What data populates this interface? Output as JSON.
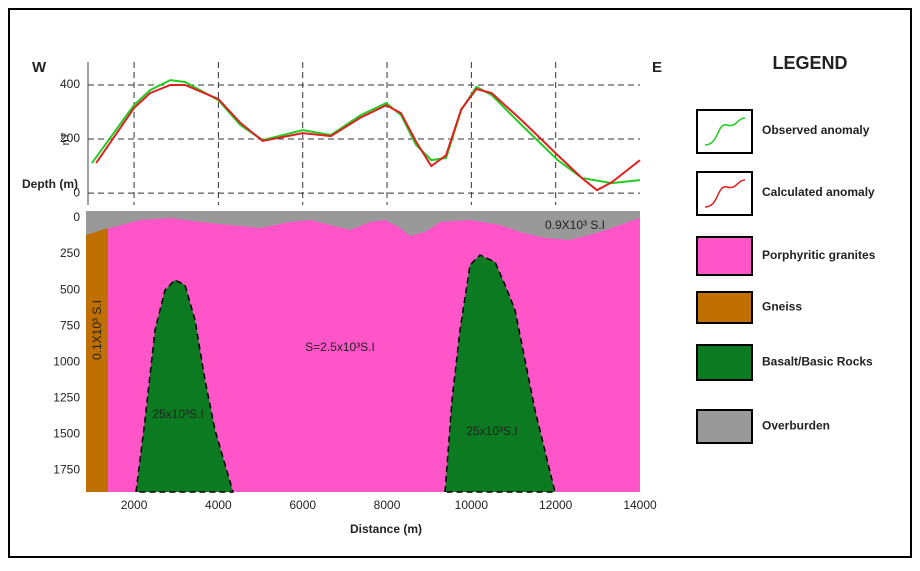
{
  "chart_data": [
    {
      "type": "line",
      "y_label": "nT",
      "left_label": "W",
      "right_label": "E",
      "xlim": [
        860,
        14000
      ],
      "ylim": [
        -44,
        485
      ],
      "yticks": [
        0,
        200,
        400
      ],
      "grid": true,
      "series": [
        {
          "name": "Observed anomaly",
          "color": "#22cc22",
          "x": [
            1000,
            2000,
            2380,
            2860,
            3210,
            4000,
            4520,
            5050,
            6000,
            6670,
            7380,
            7980,
            8330,
            8690,
            9050,
            9400,
            9760,
            10120,
            10480,
            11190,
            12050,
            12620,
            13330,
            14000
          ],
          "values": [
            111,
            326,
            381,
            418,
            411,
            344,
            252,
            196,
            233,
            215,
            289,
            333,
            289,
            178,
            122,
            130,
            307,
            393,
            363,
            252,
            122,
            56,
            37,
            48
          ]
        },
        {
          "name": "Calculated anomaly",
          "color": "#e02020",
          "x": [
            1100,
            2000,
            2380,
            2860,
            3210,
            4000,
            4520,
            5050,
            6000,
            6670,
            7380,
            7980,
            8330,
            8690,
            9050,
            9400,
            9760,
            10120,
            10480,
            11190,
            12050,
            12620,
            12980,
            13330,
            14000
          ],
          "values": [
            111,
            315,
            370,
            400,
            400,
            348,
            260,
            193,
            222,
            211,
            280,
            325,
            296,
            190,
            100,
            140,
            310,
            385,
            370,
            270,
            140,
            56,
            11,
            40,
            122
          ]
        }
      ]
    },
    {
      "type": "section",
      "x_label": "Distance (m)",
      "y_label": "Depth (m)",
      "xlim": [
        860,
        14000
      ],
      "ylim": [
        1900,
        0
      ],
      "xticks": [
        2000,
        4000,
        6000,
        8000,
        10000,
        12000,
        14000
      ],
      "yticks": [
        0,
        250,
        500,
        750,
        1000,
        1250,
        1500,
        1750
      ],
      "annotations": [
        "0.9X10³ S.I",
        "0.1X10³ S.I",
        "S=2.5x10³S.I",
        "25x10³S.I",
        "25x10³S.I"
      ]
    }
  ],
  "legend": {
    "title": "LEGEND",
    "units": [
      {
        "label": "Porphyritic granites",
        "color": "#ff55c8"
      },
      {
        "label": "Gneiss",
        "color": "#c07000"
      },
      {
        "label": "Basalt/Basic Rocks",
        "color": "#0b7a20"
      },
      {
        "label": "Overburden",
        "color": "#999999"
      }
    ]
  }
}
